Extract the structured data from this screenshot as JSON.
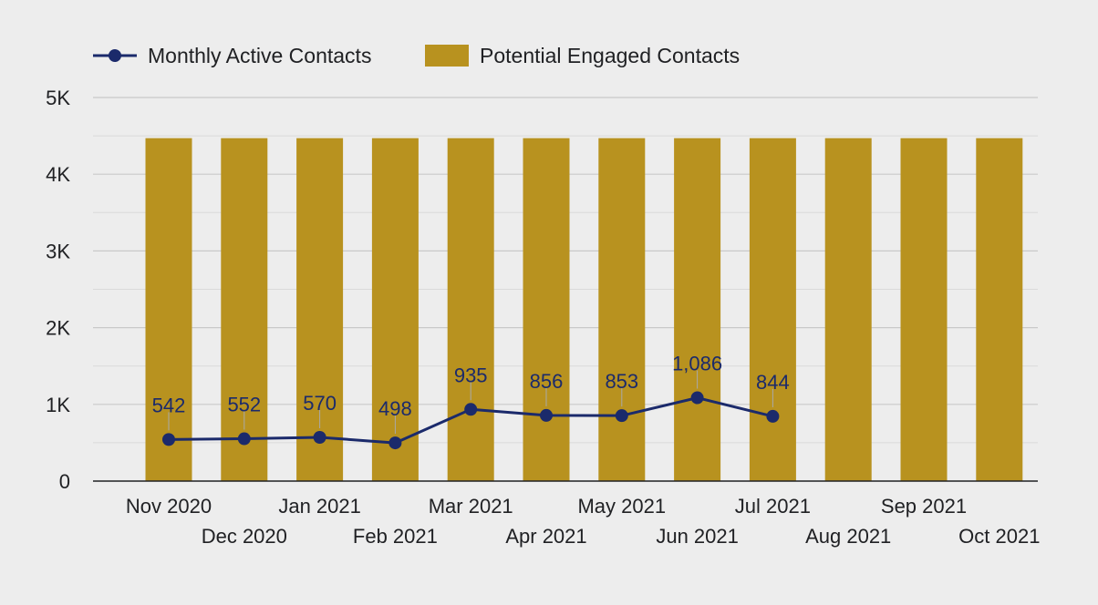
{
  "chart_data": {
    "type": "bar",
    "categories": [
      "Nov 2020",
      "Dec 2020",
      "Jan 2021",
      "Feb 2021",
      "Mar 2021",
      "Apr 2021",
      "May 2021",
      "Jun 2021",
      "Jul 2021",
      "Aug 2021",
      "Sep 2021",
      "Oct 2021"
    ],
    "series": [
      {
        "name": "Monthly Active Contacts",
        "kind": "line",
        "color": "#1b2a6b",
        "values": [
          542,
          552,
          570,
          498,
          935,
          856,
          853,
          1086,
          844,
          null,
          null,
          null
        ],
        "labels": [
          "542",
          "552",
          "570",
          "498",
          "935",
          "856",
          "853",
          "1,086",
          "844",
          "",
          "",
          ""
        ]
      },
      {
        "name": "Potential Engaged Contacts",
        "kind": "bar",
        "color": "#b8921f",
        "values": [
          4470,
          4470,
          4470,
          4470,
          4470,
          4470,
          4470,
          4470,
          4470,
          4470,
          4470,
          4470
        ]
      }
    ],
    "yticks": [
      {
        "value": 0,
        "label": "0"
      },
      {
        "value": 1000,
        "label": "1K"
      },
      {
        "value": 2000,
        "label": "2K"
      },
      {
        "value": 3000,
        "label": "3K"
      },
      {
        "value": 4000,
        "label": "4K"
      },
      {
        "value": 5000,
        "label": "5K"
      }
    ],
    "ylim": [
      0,
      5000
    ],
    "grid": true,
    "legend_position": "top-left"
  }
}
